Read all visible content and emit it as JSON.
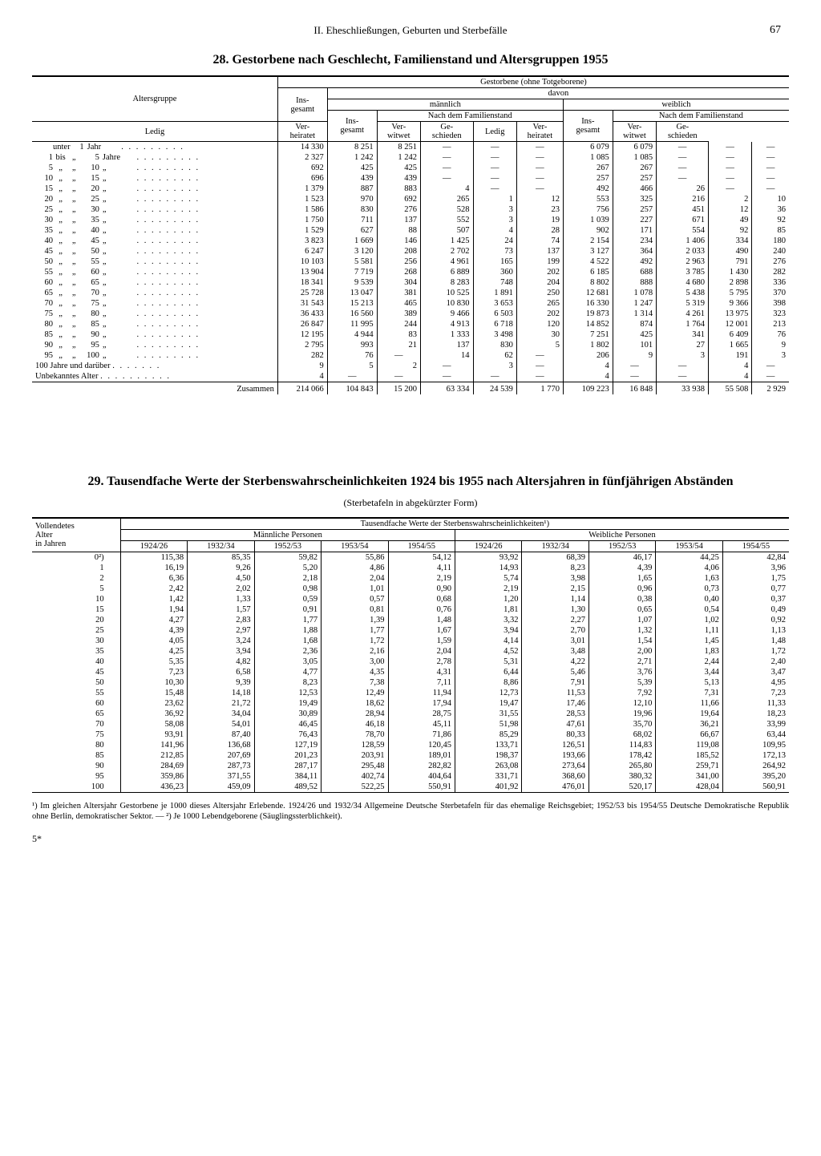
{
  "page": {
    "section_header": "II. Eheschließungen, Geburten und Sterbefälle",
    "page_number": "67",
    "sheet_mark": "5*"
  },
  "table28": {
    "title": "28. Gestorbene nach Geschlecht, Familienstand und Altersgruppen 1955",
    "headers": {
      "altersgruppe": "Altersgruppe",
      "gestorbene": "Gestorbene (ohne Totgeborene)",
      "insgesamt": "Ins-\ngesamt",
      "davon": "davon",
      "maennlich": "männlich",
      "weiblich": "weiblich",
      "nach_familienstand": "Nach dem Familienstand",
      "ledig": "Ledig",
      "verheiratet": "Ver-\nheiratet",
      "verwitwet": "Ver-\nwitwet",
      "geschieden": "Ge-\nschieden"
    },
    "row_labels": {
      "unter": "unter",
      "bis": "bis",
      "jahr": "Jahr",
      "jahre": "Jahre",
      "hundert": "100 Jahre und darüber",
      "unbekannt": "Unbekanntes Alter",
      "zusammen": "Zusammen"
    },
    "rows": [
      {
        "label_type": "unter1",
        "ins": "14 330",
        "m_ins": "8 251",
        "m_l": "8 251",
        "m_vh": "—",
        "m_vw": "—",
        "m_g": "—",
        "w_ins": "6 079",
        "w_l": "6 079",
        "w_vh": "—",
        "w_vw": "—",
        "w_g": "—"
      },
      {
        "from": "1",
        "to": "5",
        "unit": "Jahre",
        "ins": "2 327",
        "m_ins": "1 242",
        "m_l": "1 242",
        "m_vh": "—",
        "m_vw": "—",
        "m_g": "—",
        "w_ins": "1 085",
        "w_l": "1 085",
        "w_vh": "—",
        "w_vw": "—",
        "w_g": "—"
      },
      {
        "from": "5",
        "to": "10",
        "ins": "692",
        "m_ins": "425",
        "m_l": "425",
        "m_vh": "—",
        "m_vw": "—",
        "m_g": "—",
        "w_ins": "267",
        "w_l": "267",
        "w_vh": "—",
        "w_vw": "—",
        "w_g": "—"
      },
      {
        "from": "10",
        "to": "15",
        "ins": "696",
        "m_ins": "439",
        "m_l": "439",
        "m_vh": "—",
        "m_vw": "—",
        "m_g": "—",
        "w_ins": "257",
        "w_l": "257",
        "w_vh": "—",
        "w_vw": "—",
        "w_g": "—"
      },
      {
        "from": "15",
        "to": "20",
        "ins": "1 379",
        "m_ins": "887",
        "m_l": "883",
        "m_vh": "4",
        "m_vw": "—",
        "m_g": "—",
        "w_ins": "492",
        "w_l": "466",
        "w_vh": "26",
        "w_vw": "—",
        "w_g": "—"
      },
      {
        "from": "20",
        "to": "25",
        "ins": "1 523",
        "m_ins": "970",
        "m_l": "692",
        "m_vh": "265",
        "m_vw": "1",
        "m_g": "12",
        "w_ins": "553",
        "w_l": "325",
        "w_vh": "216",
        "w_vw": "2",
        "w_g": "10"
      },
      {
        "from": "25",
        "to": "30",
        "ins": "1 586",
        "m_ins": "830",
        "m_l": "276",
        "m_vh": "528",
        "m_vw": "3",
        "m_g": "23",
        "w_ins": "756",
        "w_l": "257",
        "w_vh": "451",
        "w_vw": "12",
        "w_g": "36"
      },
      {
        "from": "30",
        "to": "35",
        "ins": "1 750",
        "m_ins": "711",
        "m_l": "137",
        "m_vh": "552",
        "m_vw": "3",
        "m_g": "19",
        "w_ins": "1 039",
        "w_l": "227",
        "w_vh": "671",
        "w_vw": "49",
        "w_g": "92"
      },
      {
        "from": "35",
        "to": "40",
        "ins": "1 529",
        "m_ins": "627",
        "m_l": "88",
        "m_vh": "507",
        "m_vw": "4",
        "m_g": "28",
        "w_ins": "902",
        "w_l": "171",
        "w_vh": "554",
        "w_vw": "92",
        "w_g": "85"
      },
      {
        "from": "40",
        "to": "45",
        "ins": "3 823",
        "m_ins": "1 669",
        "m_l": "146",
        "m_vh": "1 425",
        "m_vw": "24",
        "m_g": "74",
        "w_ins": "2 154",
        "w_l": "234",
        "w_vh": "1 406",
        "w_vw": "334",
        "w_g": "180"
      },
      {
        "from": "45",
        "to": "50",
        "ins": "6 247",
        "m_ins": "3 120",
        "m_l": "208",
        "m_vh": "2 702",
        "m_vw": "73",
        "m_g": "137",
        "w_ins": "3 127",
        "w_l": "364",
        "w_vh": "2 033",
        "w_vw": "490",
        "w_g": "240"
      },
      {
        "from": "50",
        "to": "55",
        "ins": "10 103",
        "m_ins": "5 581",
        "m_l": "256",
        "m_vh": "4 961",
        "m_vw": "165",
        "m_g": "199",
        "w_ins": "4 522",
        "w_l": "492",
        "w_vh": "2 963",
        "w_vw": "791",
        "w_g": "276"
      },
      {
        "from": "55",
        "to": "60",
        "ins": "13 904",
        "m_ins": "7 719",
        "m_l": "268",
        "m_vh": "6 889",
        "m_vw": "360",
        "m_g": "202",
        "w_ins": "6 185",
        "w_l": "688",
        "w_vh": "3 785",
        "w_vw": "1 430",
        "w_g": "282"
      },
      {
        "from": "60",
        "to": "65",
        "ins": "18 341",
        "m_ins": "9 539",
        "m_l": "304",
        "m_vh": "8 283",
        "m_vw": "748",
        "m_g": "204",
        "w_ins": "8 802",
        "w_l": "888",
        "w_vh": "4 680",
        "w_vw": "2 898",
        "w_g": "336"
      },
      {
        "from": "65",
        "to": "70",
        "ins": "25 728",
        "m_ins": "13 047",
        "m_l": "381",
        "m_vh": "10 525",
        "m_vw": "1 891",
        "m_g": "250",
        "w_ins": "12 681",
        "w_l": "1 078",
        "w_vh": "5 438",
        "w_vw": "5 795",
        "w_g": "370"
      },
      {
        "from": "70",
        "to": "75",
        "ins": "31 543",
        "m_ins": "15 213",
        "m_l": "465",
        "m_vh": "10 830",
        "m_vw": "3 653",
        "m_g": "265",
        "w_ins": "16 330",
        "w_l": "1 247",
        "w_vh": "5 319",
        "w_vw": "9 366",
        "w_g": "398"
      },
      {
        "from": "75",
        "to": "80",
        "ins": "36 433",
        "m_ins": "16 560",
        "m_l": "389",
        "m_vh": "9 466",
        "m_vw": "6 503",
        "m_g": "202",
        "w_ins": "19 873",
        "w_l": "1 314",
        "w_vh": "4 261",
        "w_vw": "13 975",
        "w_g": "323"
      },
      {
        "from": "80",
        "to": "85",
        "ins": "26 847",
        "m_ins": "11 995",
        "m_l": "244",
        "m_vh": "4 913",
        "m_vw": "6 718",
        "m_g": "120",
        "w_ins": "14 852",
        "w_l": "874",
        "w_vh": "1 764",
        "w_vw": "12 001",
        "w_g": "213"
      },
      {
        "from": "85",
        "to": "90",
        "ins": "12 195",
        "m_ins": "4 944",
        "m_l": "83",
        "m_vh": "1 333",
        "m_vw": "3 498",
        "m_g": "30",
        "w_ins": "7 251",
        "w_l": "425",
        "w_vh": "341",
        "w_vw": "6 409",
        "w_g": "76"
      },
      {
        "from": "90",
        "to": "95",
        "ins": "2 795",
        "m_ins": "993",
        "m_l": "21",
        "m_vh": "137",
        "m_vw": "830",
        "m_g": "5",
        "w_ins": "1 802",
        "w_l": "101",
        "w_vh": "27",
        "w_vw": "1 665",
        "w_g": "9"
      },
      {
        "from": "95",
        "to": "100",
        "ins": "282",
        "m_ins": "76",
        "m_l": "—",
        "m_vh": "14",
        "m_vw": "62",
        "m_g": "—",
        "w_ins": "206",
        "w_l": "9",
        "w_vh": "3",
        "w_vw": "191",
        "w_g": "3"
      },
      {
        "label_type": "hundert",
        "ins": "9",
        "m_ins": "5",
        "m_l": "2",
        "m_vh": "—",
        "m_vw": "3",
        "m_g": "—",
        "w_ins": "4",
        "w_l": "—",
        "w_vh": "—",
        "w_vw": "4",
        "w_g": "—"
      },
      {
        "label_type": "unbekannt",
        "ins": "4",
        "m_ins": "—",
        "m_l": "—",
        "m_vh": "—",
        "m_vw": "—",
        "m_g": "—",
        "w_ins": "4",
        "w_l": "—",
        "w_vh": "—",
        "w_vw": "4",
        "w_g": "—"
      }
    ],
    "sum": {
      "ins": "214 066",
      "m_ins": "104 843",
      "m_l": "15 200",
      "m_vh": "63 334",
      "m_vw": "24 539",
      "m_g": "1 770",
      "w_ins": "109 223",
      "w_l": "16 848",
      "w_vh": "33 938",
      "w_vw": "55 508",
      "w_g": "2 929"
    }
  },
  "table29": {
    "title": "29. Tausendfache Werte der Sterbenswahrscheinlichkeiten 1924 bis 1955 nach Altersjahren in fünfjährigen Abständen",
    "subtitle": "(Sterbetafeln in abgekürzter Form)",
    "headers": {
      "alter": "Vollendetes\nAlter\nin Jahren",
      "main": "Tausendfache Werte der Sterbenswahrscheinlichkeiten¹)",
      "maennlich": "Männliche Personen",
      "weiblich": "Weibliche Personen"
    },
    "year_cols": [
      "1924/26",
      "1932/34",
      "1952/53",
      "1953/54",
      "1954/55"
    ],
    "ages": [
      "0²)",
      "1",
      "2",
      "5",
      "10",
      "15",
      "20",
      "25",
      "30",
      "35",
      "40",
      "45",
      "50",
      "55",
      "60",
      "65",
      "70",
      "75",
      "80",
      "85",
      "90",
      "95",
      "100"
    ],
    "male": [
      [
        "115,38",
        "85,35",
        "59,82",
        "55,86",
        "54,12"
      ],
      [
        "16,19",
        "9,26",
        "5,20",
        "4,86",
        "4,11"
      ],
      [
        "6,36",
        "4,50",
        "2,18",
        "2,04",
        "2,19"
      ],
      [
        "2,42",
        "2,02",
        "0,98",
        "1,01",
        "0,90"
      ],
      [
        "1,42",
        "1,33",
        "0,59",
        "0,57",
        "0,68"
      ],
      [
        "1,94",
        "1,57",
        "0,91",
        "0,81",
        "0,76"
      ],
      [
        "4,27",
        "2,83",
        "1,77",
        "1,39",
        "1,48"
      ],
      [
        "4,39",
        "2,97",
        "1,88",
        "1,77",
        "1,67"
      ],
      [
        "4,05",
        "3,24",
        "1,68",
        "1,72",
        "1,59"
      ],
      [
        "4,25",
        "3,94",
        "2,36",
        "2,16",
        "2,04"
      ],
      [
        "5,35",
        "4,82",
        "3,05",
        "3,00",
        "2,78"
      ],
      [
        "7,23",
        "6,58",
        "4,77",
        "4,35",
        "4,31"
      ],
      [
        "10,30",
        "9,39",
        "8,23",
        "7,38",
        "7,11"
      ],
      [
        "15,48",
        "14,18",
        "12,53",
        "12,49",
        "11,94"
      ],
      [
        "23,62",
        "21,72",
        "19,49",
        "18,62",
        "17,94"
      ],
      [
        "36,92",
        "34,04",
        "30,89",
        "28,94",
        "28,75"
      ],
      [
        "58,08",
        "54,01",
        "46,45",
        "46,18",
        "45,11"
      ],
      [
        "93,91",
        "87,40",
        "76,43",
        "78,70",
        "71,86"
      ],
      [
        "141,96",
        "136,68",
        "127,19",
        "128,59",
        "120,45"
      ],
      [
        "212,85",
        "207,69",
        "201,23",
        "203,91",
        "189,01"
      ],
      [
        "284,69",
        "287,73",
        "287,17",
        "295,48",
        "282,82"
      ],
      [
        "359,86",
        "371,55",
        "384,11",
        "402,74",
        "404,64"
      ],
      [
        "436,23",
        "459,09",
        "489,52",
        "522,25",
        "550,91"
      ]
    ],
    "female": [
      [
        "93,92",
        "68,39",
        "46,17",
        "44,25",
        "42,84"
      ],
      [
        "14,93",
        "8,23",
        "4,39",
        "4,06",
        "3,96"
      ],
      [
        "5,74",
        "3,98",
        "1,65",
        "1,63",
        "1,75"
      ],
      [
        "2,19",
        "2,15",
        "0,96",
        "0,73",
        "0,77"
      ],
      [
        "1,20",
        "1,14",
        "0,38",
        "0,40",
        "0,37"
      ],
      [
        "1,81",
        "1,30",
        "0,65",
        "0,54",
        "0,49"
      ],
      [
        "3,32",
        "2,27",
        "1,07",
        "1,02",
        "0,92"
      ],
      [
        "3,94",
        "2,70",
        "1,32",
        "1,11",
        "1,13"
      ],
      [
        "4,14",
        "3,01",
        "1,54",
        "1,45",
        "1,48"
      ],
      [
        "4,52",
        "3,48",
        "2,00",
        "1,83",
        "1,72"
      ],
      [
        "5,31",
        "4,22",
        "2,71",
        "2,44",
        "2,40"
      ],
      [
        "6,44",
        "5,46",
        "3,76",
        "3,44",
        "3,47"
      ],
      [
        "8,86",
        "7,91",
        "5,39",
        "5,13",
        "4,95"
      ],
      [
        "12,73",
        "11,53",
        "7,92",
        "7,31",
        "7,23"
      ],
      [
        "19,47",
        "17,46",
        "12,10",
        "11,66",
        "11,33"
      ],
      [
        "31,55",
        "28,53",
        "19,96",
        "19,64",
        "18,23"
      ],
      [
        "51,98",
        "47,61",
        "35,70",
        "36,21",
        "33,99"
      ],
      [
        "85,29",
        "80,33",
        "68,02",
        "66,67",
        "63,44"
      ],
      [
        "133,71",
        "126,51",
        "114,83",
        "119,08",
        "109,95"
      ],
      [
        "198,37",
        "193,66",
        "178,42",
        "185,52",
        "172,13"
      ],
      [
        "263,08",
        "273,64",
        "265,80",
        "259,71",
        "264,92"
      ],
      [
        "331,71",
        "368,60",
        "380,32",
        "341,00",
        "395,20"
      ],
      [
        "401,92",
        "476,01",
        "520,17",
        "428,04",
        "560,91"
      ]
    ]
  },
  "footnotes": {
    "text": "¹) Im gleichen Altersjahr Gestorbene je 1000 dieses Altersjahr Erlebende. 1924/26 und 1932/34 Allgemeine Deutsche Sterbetafeln für das ehemalige Reichsgebiet; 1952/53 bis 1954/55 Deutsche Demokratische Republik ohne Berlin, demokratischer Sektor. — ²) Je 1000 Lebendgeborene (Säuglingssterblichkeit)."
  }
}
